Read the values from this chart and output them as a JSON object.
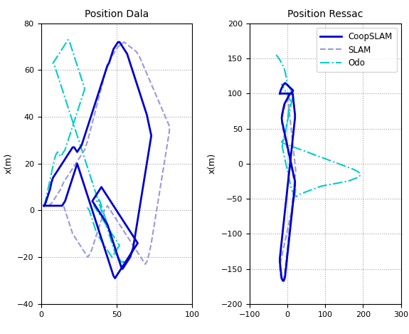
{
  "title_dala": "Position Dala",
  "title_ressac": "Position Ressac",
  "ylabel": "x(m)",
  "dala_xlim": [
    0,
    100
  ],
  "dala_ylim": [
    -40,
    80
  ],
  "ressac_xlim": [
    -100,
    300
  ],
  "ressac_ylim": [
    -200,
    200
  ],
  "dala_xticks": [
    0,
    50,
    100
  ],
  "dala_yticks": [
    -40,
    -20,
    0,
    20,
    40,
    60,
    80
  ],
  "ressac_xticks": [
    -100,
    0,
    100,
    200,
    300
  ],
  "ressac_yticks": [
    -200,
    -150,
    -100,
    -50,
    0,
    50,
    100,
    150,
    200
  ],
  "coopslam_color": "#0000CD",
  "slam_color": "#9999DD",
  "odo_color": "#00CCCC",
  "title_fontsize": 10,
  "label_fontsize": 9,
  "tick_fontsize": 8,
  "dala_coop_x": [
    2,
    3,
    4,
    5,
    6,
    7,
    8,
    10,
    12,
    14,
    16,
    18,
    19,
    20,
    21,
    22,
    23,
    24,
    25,
    26,
    27,
    28,
    29,
    30,
    31,
    32,
    33,
    34,
    35,
    36,
    37,
    38,
    39,
    40,
    41,
    42,
    43,
    44,
    45,
    46,
    47,
    48,
    49,
    50,
    51,
    52,
    53,
    54,
    55,
    56,
    57,
    58,
    59,
    60,
    61,
    62,
    63,
    64,
    65,
    66,
    67,
    68,
    69,
    70,
    71,
    72,
    73,
    72,
    71,
    70,
    69,
    68,
    67,
    66,
    65,
    64,
    63,
    62,
    61,
    60,
    59,
    58,
    57,
    56,
    55,
    54,
    53,
    52,
    51,
    50,
    49,
    48,
    47,
    46,
    45,
    44,
    43,
    42,
    41,
    40,
    39,
    38,
    37,
    36,
    35,
    34,
    35,
    36,
    37,
    38,
    39,
    40,
    41,
    42,
    43,
    44,
    45,
    46,
    47,
    48,
    49,
    50,
    51,
    52,
    53,
    54,
    55,
    56,
    57,
    58,
    59,
    60,
    61,
    62,
    63,
    64,
    63,
    62,
    61,
    60,
    59,
    58,
    57,
    56,
    55,
    54,
    53,
    52,
    51,
    50,
    49,
    48,
    47,
    46,
    45,
    44,
    43,
    42,
    41,
    40,
    39,
    38,
    37,
    36,
    35,
    34,
    33,
    32,
    31,
    30,
    29,
    28,
    27,
    26,
    25,
    24,
    23,
    22,
    21,
    20,
    19,
    18,
    17,
    16,
    15,
    14,
    13,
    12,
    11,
    10,
    9,
    8,
    7,
    6,
    5,
    4,
    3,
    2
  ],
  "dala_coop_y": [
    2,
    3,
    5,
    7,
    9,
    12,
    14,
    16,
    18,
    20,
    22,
    24,
    25,
    26,
    27,
    27,
    26,
    25,
    26,
    27,
    28,
    30,
    32,
    34,
    36,
    38,
    40,
    42,
    44,
    46,
    48,
    50,
    52,
    54,
    56,
    58,
    60,
    62,
    63,
    65,
    67,
    69,
    70,
    71,
    72,
    72,
    71,
    70,
    69,
    68,
    67,
    65,
    63,
    61,
    59,
    57,
    55,
    53,
    51,
    49,
    47,
    45,
    43,
    41,
    38,
    35,
    32,
    28,
    24,
    20,
    16,
    12,
    8,
    4,
    0,
    -4,
    -8,
    -12,
    -16,
    -18,
    -20,
    -21,
    -22,
    -23,
    -24,
    -25,
    -24,
    -22,
    -20,
    -18,
    -16,
    -14,
    -12,
    -10,
    -8,
    -6,
    -5,
    -4,
    -3,
    -2,
    -1,
    0,
    1,
    2,
    3,
    4,
    5,
    6,
    7,
    8,
    9,
    10,
    9,
    8,
    7,
    6,
    5,
    4,
    3,
    2,
    1,
    0,
    -1,
    -2,
    -3,
    -4,
    -5,
    -6,
    -7,
    -8,
    -9,
    -10,
    -11,
    -12,
    -13,
    -14,
    -15,
    -16,
    -17,
    -18,
    -19,
    -20,
    -21,
    -22,
    -23,
    -24,
    -25,
    -26,
    -27,
    -28,
    -29,
    -28,
    -26,
    -24,
    -22,
    -20,
    -18,
    -16,
    -14,
    -12,
    -10,
    -8,
    -6,
    -4,
    -2,
    0,
    2,
    4,
    6,
    8,
    10,
    12,
    14,
    16,
    18,
    20,
    18,
    16,
    14,
    12,
    10,
    8,
    6,
    4,
    3,
    2,
    2,
    2,
    2,
    2,
    2,
    2,
    2,
    2,
    2,
    2,
    2,
    2
  ],
  "dala_slam_x": [
    5,
    7,
    9,
    11,
    13,
    15,
    17,
    19,
    21,
    23,
    25,
    27,
    29,
    31,
    33,
    35,
    37,
    39,
    41,
    43,
    45,
    47,
    49,
    51,
    53,
    55,
    57,
    59,
    61,
    63,
    65,
    67,
    69,
    71,
    73,
    75,
    77,
    79,
    81,
    83,
    85,
    85,
    84,
    83,
    82,
    81,
    80,
    79,
    78,
    77,
    76,
    75,
    74,
    73,
    72,
    71,
    70,
    69,
    68,
    67,
    66,
    65,
    64,
    63,
    62,
    61,
    60,
    59,
    58,
    57,
    56,
    55,
    54,
    53,
    52,
    51,
    50,
    49,
    48,
    47,
    46,
    45,
    44,
    43,
    42,
    41,
    40,
    39,
    38,
    37,
    36,
    35,
    34,
    33,
    32,
    31,
    30,
    29,
    28,
    27,
    26,
    25,
    24,
    23,
    22,
    21,
    20,
    19,
    18,
    17,
    16,
    15
  ],
  "dala_slam_y": [
    2,
    3,
    5,
    7,
    9,
    12,
    14,
    16,
    18,
    20,
    22,
    24,
    26,
    30,
    35,
    40,
    45,
    50,
    55,
    60,
    63,
    66,
    68,
    70,
    71,
    72,
    71,
    70,
    69,
    68,
    66,
    63,
    60,
    57,
    54,
    51,
    48,
    45,
    42,
    39,
    36,
    34,
    30,
    26,
    22,
    18,
    14,
    10,
    6,
    2,
    -2,
    -6,
    -10,
    -14,
    -17,
    -20,
    -22,
    -23,
    -22,
    -21,
    -20,
    -19,
    -18,
    -17,
    -16,
    -15,
    -14,
    -13,
    -12,
    -11,
    -10,
    -9,
    -8,
    -7,
    -6,
    -5,
    -4,
    -3,
    -2,
    -1,
    0,
    1,
    2,
    1,
    0,
    -2,
    -4,
    -6,
    -8,
    -10,
    -12,
    -14,
    -16,
    -18,
    -19,
    -20,
    -19,
    -18,
    -17,
    -16,
    -15,
    -14,
    -13,
    -12,
    -11,
    -10,
    -8,
    -6,
    -4,
    -2,
    0,
    2
  ],
  "dala_odo_x": [
    2,
    3,
    4,
    5,
    6,
    7,
    8,
    9,
    10,
    11,
    12,
    13,
    14,
    15,
    16,
    17,
    18,
    19,
    20,
    21,
    22,
    23,
    24,
    25,
    26,
    27,
    28,
    29,
    28,
    27,
    26,
    25,
    24,
    23,
    22,
    21,
    20,
    19,
    18,
    17,
    16,
    15,
    14,
    13,
    12,
    11,
    10,
    9,
    8,
    9,
    10,
    11,
    12,
    13,
    14,
    15,
    16,
    17,
    18,
    19,
    20,
    21,
    22,
    23,
    24,
    25,
    26,
    27,
    28,
    29,
    30,
    31,
    32,
    33,
    34,
    35,
    36,
    37,
    38,
    39,
    40,
    41,
    42,
    43,
    44,
    45,
    46,
    47,
    48,
    49,
    50,
    51,
    52,
    53,
    54,
    55,
    54,
    53,
    52,
    51,
    50,
    49,
    48,
    47,
    46,
    45,
    44,
    43,
    42,
    41,
    40,
    39,
    38,
    37,
    36,
    35,
    36,
    37,
    38,
    39,
    40,
    41,
    42,
    43,
    44,
    45,
    46,
    47,
    48,
    49,
    50,
    51,
    52,
    51,
    50,
    49,
    48,
    47,
    46,
    45,
    44,
    43,
    42,
    41,
    40,
    39,
    38,
    37,
    36,
    35,
    34,
    33,
    32,
    31,
    30
  ],
  "dala_odo_y": [
    2,
    4,
    7,
    10,
    13,
    16,
    19,
    22,
    24,
    25,
    24,
    23,
    24,
    25,
    26,
    28,
    30,
    32,
    34,
    36,
    38,
    40,
    42,
    44,
    46,
    48,
    50,
    52,
    54,
    56,
    58,
    60,
    62,
    64,
    66,
    68,
    70,
    72,
    73,
    72,
    71,
    70,
    69,
    68,
    67,
    66,
    65,
    64,
    63,
    62,
    60,
    58,
    56,
    54,
    52,
    50,
    48,
    46,
    44,
    42,
    40,
    38,
    36,
    34,
    32,
    30,
    28,
    26,
    24,
    22,
    20,
    18,
    16,
    14,
    12,
    10,
    8,
    6,
    4,
    2,
    0,
    -2,
    -4,
    -6,
    -8,
    -10,
    -12,
    -14,
    -16,
    -18,
    -19,
    -20,
    -21,
    -22,
    -22,
    -22,
    -22,
    -22,
    -21,
    -20,
    -18,
    -16,
    -14,
    -12,
    -10,
    -8,
    -6,
    -4,
    -2,
    0,
    2,
    4,
    5,
    4,
    3,
    2,
    1,
    0,
    -1,
    -2,
    -3,
    -4,
    -5,
    -6,
    -7,
    -8,
    -9,
    -10,
    -11,
    -12,
    -13,
    -14,
    -15,
    -16,
    -17,
    -18,
    -19,
    -20,
    -19,
    -18,
    -17,
    -16,
    -15,
    -14,
    -13,
    -12,
    -11,
    -10,
    -8,
    -6,
    -4,
    -2,
    0,
    1,
    2
  ],
  "ressac_coop_x": [
    -20,
    -18,
    -15,
    -12,
    -10,
    -8,
    -6,
    -4,
    -2,
    0,
    2,
    4,
    6,
    8,
    10,
    12,
    14,
    15,
    14,
    12,
    10,
    8,
    6,
    4,
    2,
    0,
    -2,
    -4,
    -6,
    -8,
    -10,
    -12,
    -14,
    -15,
    -14,
    -12,
    -10,
    -8,
    -6,
    -4,
    -2,
    0,
    2,
    4,
    6,
    8,
    10,
    12,
    14,
    16,
    18,
    20,
    20,
    19,
    18,
    17,
    16,
    15,
    14,
    13,
    12,
    11,
    10,
    9,
    8,
    7,
    6,
    5,
    4,
    3,
    2,
    1,
    0,
    -1,
    -2,
    -3,
    -4,
    -5,
    -6,
    -7,
    -8,
    -9,
    -10,
    -11,
    -12,
    -13,
    -14,
    -15,
    -16,
    -17,
    -18,
    -19,
    -20,
    -20,
    -19,
    -18,
    -17,
    -16,
    -15,
    -14,
    -13,
    -12,
    -11,
    -10,
    -9,
    -8,
    -7,
    -6,
    -5,
    -4,
    -3,
    -2,
    -1,
    0,
    1,
    2,
    3,
    4,
    5,
    6,
    7,
    8,
    9,
    10,
    11,
    12,
    13,
    14,
    15,
    16,
    17,
    18,
    19,
    20,
    20,
    19,
    18,
    17,
    16,
    15,
    14,
    13,
    12,
    11,
    10,
    9,
    8,
    7,
    6,
    5,
    4,
    3,
    2,
    1,
    0,
    -2,
    -4,
    -6,
    -8,
    -10,
    -12,
    -14,
    -16,
    -18,
    -20
  ],
  "ressac_coop_y": [
    100,
    104,
    108,
    111,
    113,
    114,
    115,
    114,
    113,
    112,
    111,
    110,
    109,
    108,
    107,
    106,
    105,
    104,
    103,
    102,
    101,
    100,
    99,
    97,
    95,
    93,
    91,
    89,
    87,
    85,
    80,
    75,
    70,
    65,
    60,
    55,
    50,
    45,
    40,
    35,
    30,
    25,
    20,
    15,
    10,
    5,
    0,
    -5,
    -10,
    -15,
    -20,
    -25,
    -30,
    -35,
    -40,
    -45,
    -50,
    -55,
    -60,
    -65,
    -70,
    -75,
    -80,
    -85,
    -90,
    -95,
    -100,
    -105,
    -110,
    -115,
    -120,
    -125,
    -130,
    -135,
    -140,
    -145,
    -150,
    -155,
    -160,
    -163,
    -165,
    -166,
    -167,
    -167,
    -167,
    -166,
    -165,
    -163,
    -160,
    -155,
    -150,
    -145,
    -140,
    -135,
    -130,
    -125,
    -120,
    -115,
    -110,
    -105,
    -100,
    -95,
    -90,
    -85,
    -80,
    -75,
    -70,
    -65,
    -60,
    -55,
    -50,
    -45,
    -40,
    -35,
    -30,
    -25,
    -20,
    -15,
    -10,
    -5,
    0,
    5,
    10,
    15,
    20,
    25,
    30,
    35,
    40,
    45,
    50,
    55,
    60,
    65,
    70,
    75,
    80,
    85,
    90,
    95,
    100,
    100,
    100,
    100,
    100,
    100,
    100,
    100,
    100,
    100,
    100,
    100,
    100,
    100,
    100,
    100,
    100,
    100,
    100,
    100,
    100,
    100,
    100,
    100,
    100
  ],
  "ressac_slam_x": [
    -20,
    -18,
    -15,
    -12,
    -10,
    -8,
    -6,
    -4,
    -2,
    0,
    2,
    4,
    6,
    8,
    10,
    12,
    14,
    16,
    15,
    14,
    12,
    10,
    8,
    6,
    4,
    2,
    0,
    -2,
    -4,
    -6,
    -8,
    -10,
    -12,
    -14,
    -15,
    -14,
    -12,
    -10,
    -8,
    -6,
    -4,
    -2,
    0,
    2,
    4,
    6,
    8,
    10,
    12,
    14,
    16,
    18,
    20,
    22,
    21,
    20,
    18,
    16,
    14,
    12,
    10,
    8,
    6,
    4,
    2,
    0,
    -2,
    -4,
    -6,
    -8,
    -10,
    -12,
    -14,
    -16,
    -18,
    -20,
    -20,
    -19,
    -18,
    -17,
    -16,
    -15,
    -14,
    -13,
    -12,
    -11,
    -10,
    -9,
    -8,
    -7,
    -6,
    -5,
    -4,
    -3,
    -2,
    -1,
    0,
    1,
    2,
    3,
    4,
    5,
    6,
    7,
    8,
    9,
    10,
    11,
    12,
    13,
    14,
    15,
    16,
    17,
    18,
    19,
    20,
    21,
    22,
    21,
    20,
    19,
    18,
    17,
    16,
    15,
    14,
    13,
    12,
    11,
    10,
    9,
    8,
    7,
    6,
    5,
    4,
    3,
    2,
    1,
    0,
    -2,
    -4,
    -6,
    -8,
    -10,
    -12,
    -14,
    -16,
    -18,
    -20
  ],
  "ressac_slam_y": [
    100,
    104,
    108,
    111,
    113,
    114,
    115,
    114,
    113,
    112,
    111,
    110,
    109,
    108,
    107,
    106,
    105,
    104,
    103,
    102,
    101,
    100,
    99,
    97,
    95,
    93,
    91,
    89,
    87,
    85,
    80,
    75,
    70,
    65,
    60,
    55,
    50,
    45,
    40,
    35,
    30,
    25,
    20,
    15,
    10,
    5,
    0,
    -5,
    -10,
    -15,
    -20,
    -25,
    -30,
    -35,
    -40,
    -45,
    -50,
    -55,
    -60,
    -65,
    -70,
    -75,
    -80,
    -85,
    -90,
    -95,
    -100,
    -105,
    -110,
    -115,
    -120,
    -125,
    -130,
    -135,
    -140,
    -145,
    -150,
    -155,
    -160,
    -163,
    -165,
    -166,
    -167,
    -167,
    -167,
    -166,
    -165,
    -163,
    -160,
    -155,
    -150,
    -145,
    -140,
    -135,
    -130,
    -125,
    -120,
    -115,
    -110,
    -105,
    -100,
    -95,
    -90,
    -85,
    -80,
    -75,
    -70,
    -65,
    -60,
    -55,
    -50,
    -45,
    -40,
    -35,
    -30,
    -25,
    -20,
    -15,
    -10,
    -5,
    0,
    5,
    10,
    15,
    20,
    25,
    30,
    35,
    40,
    45,
    50,
    55,
    60,
    65,
    70,
    75,
    80,
    85,
    90,
    95,
    100,
    100,
    100,
    100,
    100,
    100,
    100,
    100,
    100,
    100,
    100
  ],
  "ressac_odo_x": [
    -30,
    -25,
    -20,
    -15,
    -10,
    -7,
    -5,
    -3,
    -2,
    0,
    2,
    4,
    6,
    8,
    10,
    12,
    14,
    15,
    14,
    12,
    10,
    8,
    6,
    4,
    2,
    0,
    -2,
    -4,
    -6,
    -8,
    -10,
    -12,
    -14,
    -12,
    -10,
    -8,
    -6,
    -4,
    -2,
    0,
    2,
    4,
    6,
    8,
    10,
    12,
    14,
    16,
    18,
    20,
    22,
    24,
    26,
    28,
    30,
    35,
    40,
    45,
    50,
    55,
    60,
    65,
    70,
    75,
    80,
    85,
    90,
    100,
    110,
    120,
    130,
    140,
    150,
    160,
    165,
    170,
    175,
    180,
    185,
    188,
    190,
    192,
    193,
    193,
    192,
    190,
    188,
    185,
    182,
    178,
    174,
    170,
    165,
    160,
    155,
    150,
    145,
    140,
    135,
    130,
    125,
    120,
    115,
    110,
    105,
    100,
    95,
    90,
    85,
    80,
    75,
    70,
    65,
    60,
    55,
    50,
    45,
    40,
    35,
    30,
    25,
    20,
    15,
    10,
    5,
    0,
    -5,
    -10,
    -14,
    -15,
    -14,
    -12,
    -10,
    -8,
    -6,
    -4,
    -2,
    0,
    2,
    4,
    6,
    8,
    10,
    8,
    6,
    4,
    2,
    0,
    -2,
    -4,
    -6,
    -8,
    -10,
    -12,
    -14,
    -16
  ],
  "ressac_odo_y": [
    155,
    152,
    148,
    143,
    138,
    133,
    128,
    123,
    118,
    114,
    112,
    110,
    108,
    106,
    104,
    102,
    100,
    98,
    95,
    90,
    85,
    80,
    75,
    70,
    65,
    60,
    55,
    50,
    45,
    40,
    35,
    30,
    25,
    20,
    15,
    10,
    5,
    0,
    -5,
    -10,
    -15,
    -20,
    -25,
    -30,
    -35,
    -38,
    -40,
    -42,
    -44,
    -45,
    -46,
    -47,
    -46,
    -45,
    -44,
    -43,
    -42,
    -41,
    -40,
    -39,
    -38,
    -37,
    -36,
    -35,
    -34,
    -33,
    -32,
    -31,
    -30,
    -29,
    -28,
    -27,
    -26,
    -25,
    -24,
    -23,
    -22,
    -21,
    -20,
    -19,
    -18,
    -17,
    -16,
    -15,
    -14,
    -13,
    -12,
    -11,
    -10,
    -9,
    -8,
    -7,
    -6,
    -5,
    -4,
    -3,
    -2,
    -1,
    0,
    1,
    2,
    3,
    4,
    5,
    6,
    7,
    8,
    9,
    10,
    11,
    12,
    13,
    14,
    15,
    16,
    17,
    18,
    19,
    20,
    21,
    22,
    23,
    24,
    25,
    26,
    27,
    28,
    29,
    30,
    31,
    32,
    33,
    35,
    38,
    42,
    48,
    55,
    62,
    70,
    78,
    82,
    85,
    88,
    90,
    92,
    94,
    96,
    98,
    100,
    102,
    104,
    106,
    108,
    110,
    112,
    114
  ]
}
